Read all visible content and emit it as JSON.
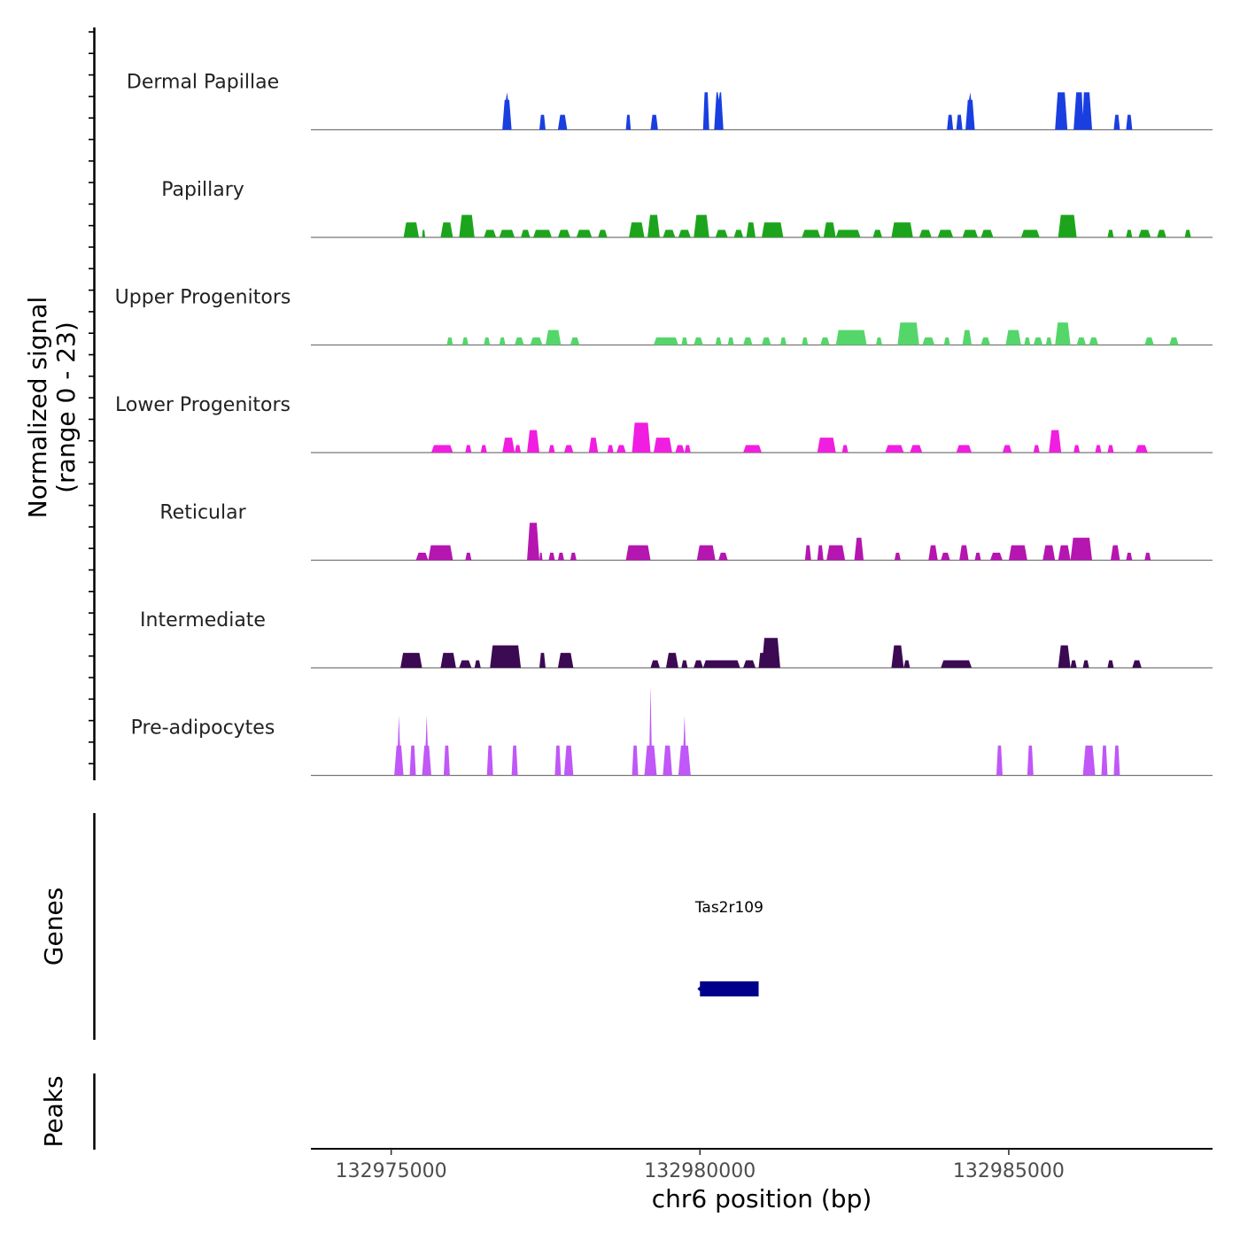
{
  "chart_data": {
    "type": "area",
    "title": "",
    "ylabel_line1": "Normalized signal",
    "ylabel_line2": "(range 0 - 23)",
    "xlabel": "chr6 position (bp)",
    "chromosome": "chr6",
    "xlim": [
      132973700,
      132988300
    ],
    "ylim": [
      0,
      23
    ],
    "x_ticks": [
      132975000,
      132980000,
      132985000
    ],
    "x_tick_labels": [
      "132975000",
      "132980000",
      "132985000"
    ],
    "series": [
      {
        "name": "Dermal Papillae",
        "color": "#1a3fe0",
        "peaks": [
          [
            132976800,
            132976950,
            4,
            5
          ],
          [
            132977400,
            132977500,
            2
          ],
          [
            132977700,
            132977850,
            2
          ],
          [
            132978800,
            132978880,
            2
          ],
          [
            132979200,
            132979320,
            2
          ],
          [
            132980050,
            132980150,
            5
          ],
          [
            132980230,
            132980380,
            5,
            4
          ],
          [
            132984000,
            132984100,
            2
          ],
          [
            132984150,
            132984250,
            2
          ],
          [
            132984300,
            132984450,
            4,
            5
          ],
          [
            132985750,
            132985950,
            5
          ],
          [
            132986050,
            132986350,
            5,
            2
          ],
          [
            132986700,
            132986800,
            2
          ],
          [
            132986900,
            132987000,
            2
          ]
        ]
      },
      {
        "name": "Papillary",
        "color": "#1ca51c",
        "peaks": [
          [
            132975200,
            132975450,
            2
          ],
          [
            132975500,
            132975550,
            1
          ],
          [
            132975800,
            132976000,
            2
          ],
          [
            132976100,
            132976350,
            3
          ],
          [
            132976500,
            132976700,
            1
          ],
          [
            132976750,
            132977000,
            1
          ],
          [
            132977100,
            132977250,
            1
          ],
          [
            132977300,
            132977600,
            1
          ],
          [
            132977700,
            132977900,
            1
          ],
          [
            132978000,
            132978250,
            1
          ],
          [
            132978350,
            132978500,
            1
          ],
          [
            132978850,
            132979100,
            2
          ],
          [
            132979150,
            132979350,
            3
          ],
          [
            132979400,
            132979600,
            1
          ],
          [
            132979650,
            132979850,
            1
          ],
          [
            132979900,
            132980150,
            3
          ],
          [
            132980250,
            132980450,
            1
          ],
          [
            132980550,
            132980700,
            1
          ],
          [
            132980750,
            132980900,
            2
          ],
          [
            132981000,
            132981350,
            2
          ],
          [
            132981650,
            132981950,
            1
          ],
          [
            132982000,
            132982200,
            2
          ],
          [
            132982200,
            132982600,
            1
          ],
          [
            132982800,
            132982950,
            1
          ],
          [
            132983100,
            132983450,
            2
          ],
          [
            132983550,
            132983750,
            1
          ],
          [
            132983850,
            132984100,
            1
          ],
          [
            132984250,
            132984500,
            1
          ],
          [
            132984550,
            132984750,
            1
          ],
          [
            132985200,
            132985500,
            1
          ],
          [
            132985800,
            132986100,
            3
          ],
          [
            132986600,
            132986700,
            1
          ],
          [
            132986900,
            132987000,
            1
          ],
          [
            132987100,
            132987300,
            1
          ],
          [
            132987400,
            132987550,
            1
          ],
          [
            132987850,
            132987950,
            1
          ]
        ]
      },
      {
        "name": "Upper Progenitors",
        "color": "#55d66a",
        "peaks": [
          [
            132975900,
            132976000,
            1
          ],
          [
            132976150,
            132976250,
            1
          ],
          [
            132976500,
            132976600,
            1
          ],
          [
            132976750,
            132976850,
            1
          ],
          [
            132977000,
            132977150,
            1
          ],
          [
            132977250,
            132977450,
            1
          ],
          [
            132977500,
            132977750,
            2
          ],
          [
            132977900,
            132978050,
            1
          ],
          [
            132979250,
            132979650,
            1
          ],
          [
            132979700,
            132979800,
            1
          ],
          [
            132979900,
            132980050,
            1
          ],
          [
            132980250,
            132980350,
            1
          ],
          [
            132980450,
            132980550,
            1
          ],
          [
            132980700,
            132980850,
            1
          ],
          [
            132981000,
            132981150,
            1
          ],
          [
            132981300,
            132981400,
            1
          ],
          [
            132981650,
            132981750,
            1
          ],
          [
            132981950,
            132982100,
            1
          ],
          [
            132982200,
            132982700,
            2
          ],
          [
            132982850,
            132982950,
            1
          ],
          [
            132983200,
            132983550,
            3
          ],
          [
            132983600,
            132983800,
            1
          ],
          [
            132983950,
            132984050,
            1
          ],
          [
            132984250,
            132984400,
            2
          ],
          [
            132984550,
            132984700,
            1
          ],
          [
            132984950,
            132985200,
            2
          ],
          [
            132985250,
            132985350,
            1
          ],
          [
            132985400,
            132985550,
            1
          ],
          [
            132985600,
            132985700,
            1
          ],
          [
            132985750,
            132986000,
            3
          ],
          [
            132986100,
            132986250,
            1
          ],
          [
            132986300,
            132986450,
            1
          ],
          [
            132987200,
            132987350,
            1
          ],
          [
            132987600,
            132987750,
            1
          ]
        ]
      },
      {
        "name": "Lower Progenitors",
        "color": "#f01ee0",
        "peaks": [
          [
            132975650,
            132976000,
            1
          ],
          [
            132976200,
            132976300,
            1
          ],
          [
            132976450,
            132976550,
            1
          ],
          [
            132976800,
            132977000,
            2
          ],
          [
            132977000,
            132977100,
            1
          ],
          [
            132977200,
            132977400,
            3
          ],
          [
            132977550,
            132977650,
            1
          ],
          [
            132977800,
            132977950,
            1
          ],
          [
            132978200,
            132978350,
            2
          ],
          [
            132978500,
            132978600,
            1
          ],
          [
            132978650,
            132978800,
            1
          ],
          [
            132978900,
            132979200,
            4
          ],
          [
            132979250,
            132979550,
            2
          ],
          [
            132979600,
            132979750,
            1
          ],
          [
            132979750,
            132979850,
            1
          ],
          [
            132980700,
            132981000,
            1
          ],
          [
            132981900,
            132982200,
            2
          ],
          [
            132982300,
            132982400,
            1
          ],
          [
            132983000,
            132983300,
            1
          ],
          [
            132983400,
            132983600,
            1
          ],
          [
            132984150,
            132984400,
            1
          ],
          [
            132984900,
            132985050,
            1
          ],
          [
            132985400,
            132985500,
            1
          ],
          [
            132985650,
            132985850,
            3
          ],
          [
            132986050,
            132986150,
            1
          ],
          [
            132986400,
            132986500,
            1
          ],
          [
            132986600,
            132986700,
            1
          ],
          [
            132987050,
            132987250,
            1
          ]
        ]
      },
      {
        "name": "Reticular",
        "color": "#b516b0",
        "peaks": [
          [
            132975400,
            132975600,
            1
          ],
          [
            132975600,
            132976000,
            2
          ],
          [
            132976200,
            132976300,
            1
          ],
          [
            132977200,
            132977400,
            5
          ],
          [
            132977400,
            132977450,
            1
          ],
          [
            132977550,
            132977650,
            1
          ],
          [
            132977700,
            132977800,
            1
          ],
          [
            132977900,
            132978000,
            1
          ],
          [
            132978800,
            132979200,
            2
          ],
          [
            132979950,
            132980250,
            2
          ],
          [
            132980300,
            132980450,
            1
          ],
          [
            132981700,
            132981800,
            2
          ],
          [
            132981900,
            132982000,
            2
          ],
          [
            132982050,
            132982350,
            2
          ],
          [
            132982500,
            132982650,
            3
          ],
          [
            132983150,
            132983250,
            1
          ],
          [
            132983700,
            132983850,
            2
          ],
          [
            132983900,
            132984050,
            1
          ],
          [
            132984200,
            132984350,
            2
          ],
          [
            132984450,
            132984550,
            1
          ],
          [
            132984700,
            132984900,
            1
          ],
          [
            132985000,
            132985300,
            2
          ],
          [
            132985550,
            132985750,
            2
          ],
          [
            132985800,
            132986000,
            2
          ],
          [
            132986000,
            132986350,
            3
          ],
          [
            132986650,
            132986800,
            2
          ],
          [
            132986900,
            132987000,
            1
          ],
          [
            132987200,
            132987300,
            1
          ]
        ]
      },
      {
        "name": "Intermediate",
        "color": "#3b0a52",
        "peaks": [
          [
            132975150,
            132975500,
            2
          ],
          [
            132975800,
            132976050,
            2
          ],
          [
            132976100,
            132976300,
            1
          ],
          [
            132976350,
            132976450,
            1
          ],
          [
            132976600,
            132977100,
            3
          ],
          [
            132977400,
            132977500,
            2
          ],
          [
            132977700,
            132977950,
            2
          ],
          [
            132979200,
            132979350,
            1
          ],
          [
            132979450,
            132979650,
            2
          ],
          [
            132979700,
            132979800,
            1
          ],
          [
            132979900,
            132980050,
            1
          ],
          [
            132980050,
            132980650,
            1
          ],
          [
            132980700,
            132980900,
            1
          ],
          [
            132980950,
            132981050,
            2
          ],
          [
            132981000,
            132981300,
            4
          ],
          [
            132983100,
            132983300,
            3
          ],
          [
            132983300,
            132983400,
            1
          ],
          [
            132983900,
            132984400,
            1
          ],
          [
            132985800,
            132986000,
            3
          ],
          [
            132986000,
            132986100,
            1
          ],
          [
            132986200,
            132986300,
            1
          ],
          [
            132986600,
            132986700,
            1
          ],
          [
            132987000,
            132987150,
            1
          ]
        ]
      },
      {
        "name": "Pre-adipocytes",
        "color": "#c057f7",
        "peaks": [
          [
            132975050,
            132975200,
            4,
            8
          ],
          [
            132975300,
            132975400,
            4
          ],
          [
            132975500,
            132975650,
            4,
            8
          ],
          [
            132975850,
            132975950,
            4
          ],
          [
            132976550,
            132976650,
            4
          ],
          [
            132976950,
            132977050,
            4
          ],
          [
            132977650,
            132977750,
            4
          ],
          [
            132977800,
            132977950,
            4
          ],
          [
            132978900,
            132979000,
            4
          ],
          [
            132979100,
            132979300,
            4,
            12
          ],
          [
            132979400,
            132979550,
            4
          ],
          [
            132979650,
            132979850,
            4,
            8
          ],
          [
            132984800,
            132984900,
            4
          ],
          [
            132985300,
            132985400,
            4
          ],
          [
            132986200,
            132986400,
            4
          ],
          [
            132986500,
            132986600,
            4
          ],
          [
            132986700,
            132986800,
            4
          ]
        ]
      }
    ],
    "genes_track_label": "Genes",
    "genes": [
      {
        "name": "Tas2r109",
        "start": 132980000,
        "end": 132980950,
        "strand": "-"
      }
    ],
    "peaks_track_label": "Peaks",
    "peaks": []
  }
}
